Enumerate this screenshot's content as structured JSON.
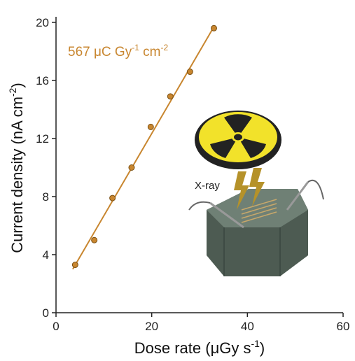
{
  "chart_data": {
    "type": "scatter",
    "annotation": {
      "text": "567 μC Gy",
      "sup1": "-1",
      "mid": " cm",
      "sup2": "-2"
    },
    "x_label": {
      "text": "Dose rate (μGy s",
      "sup": "-1",
      "end": ")"
    },
    "y_label": {
      "text": "Current density (nA cm",
      "sup": "-2",
      "end": ")"
    },
    "inset_label": "X-ray",
    "color": "#c8862f",
    "x": [
      4,
      8,
      11.8,
      15.8,
      19.8,
      23.9,
      28,
      33
    ],
    "values": [
      3.3,
      5.0,
      7.9,
      10.0,
      12.8,
      14.9,
      16.6,
      19.6
    ],
    "fit_line": {
      "x": [
        3.5,
        33
      ],
      "y": [
        3.0,
        19.7
      ]
    },
    "xlim": [
      0,
      60
    ],
    "xticks": [
      0,
      20,
      40,
      60
    ],
    "ylim": [
      0,
      20
    ],
    "yticks": [
      0,
      4,
      8,
      12,
      16,
      20
    ]
  }
}
